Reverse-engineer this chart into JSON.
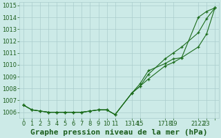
{
  "background_color": "#cceae7",
  "grid_color": "#aacccc",
  "line_color": "#1a6b1a",
  "marker_color": "#1a6b1a",
  "title": "Graphe pression niveau de la mer (hPa)",
  "ylim": [
    1005.5,
    1015.3
  ],
  "yticks": [
    1006,
    1007,
    1008,
    1009,
    1010,
    1011,
    1012,
    1013,
    1014,
    1015
  ],
  "xlim": [
    -0.5,
    23.5
  ],
  "x_positions": [
    0,
    1,
    2,
    3,
    4,
    5,
    6,
    7,
    8,
    9,
    10,
    11,
    12,
    13,
    14,
    15,
    16,
    17,
    18,
    19,
    20,
    21,
    22,
    23
  ],
  "xtick_positions": [
    0,
    1,
    2,
    3,
    4,
    5,
    6,
    7,
    8,
    9,
    10,
    11,
    13,
    14,
    15,
    17,
    18,
    19,
    21,
    22,
    23
  ],
  "xtick_labels": [
    "0",
    "1",
    "2",
    "3",
    "4",
    "5",
    "6",
    "7",
    "8",
    "9",
    "1011",
    "",
    "1314",
    "15",
    "",
    "1718",
    "19",
    "",
    "2122",
    "23",
    ""
  ],
  "series": [
    {
      "x": [
        0,
        1,
        2,
        3,
        4,
        5,
        6,
        7,
        8,
        9,
        10,
        11,
        13,
        14,
        15,
        17,
        18,
        19,
        21,
        22,
        23
      ],
      "y": [
        1006.6,
        1006.2,
        1006.1,
        1006.0,
        1006.0,
        1006.0,
        1006.0,
        1006.0,
        1006.1,
        1006.2,
        1006.2,
        1005.8,
        1007.6,
        1008.2,
        1008.8,
        1009.9,
        1010.2,
        1010.6,
        1014.0,
        1014.5,
        1014.8
      ]
    },
    {
      "x": [
        0,
        1,
        2,
        3,
        4,
        5,
        6,
        7,
        8,
        9,
        10,
        11,
        13,
        14,
        15,
        17,
        18,
        19,
        21,
        22,
        23
      ],
      "y": [
        1006.6,
        1006.2,
        1006.1,
        1006.0,
        1006.0,
        1006.0,
        1006.0,
        1006.0,
        1006.1,
        1006.2,
        1006.2,
        1005.8,
        1007.6,
        1008.2,
        1009.2,
        1010.5,
        1011.0,
        1011.5,
        1012.7,
        1013.9,
        1014.8
      ]
    },
    {
      "x": [
        0,
        1,
        2,
        3,
        4,
        5,
        6,
        7,
        8,
        9,
        10,
        11,
        13,
        14,
        15,
        17,
        18,
        19,
        21,
        22,
        23
      ],
      "y": [
        1006.6,
        1006.2,
        1006.1,
        1006.0,
        1006.0,
        1006.0,
        1006.0,
        1006.0,
        1006.1,
        1006.2,
        1006.2,
        1005.8,
        1007.6,
        1008.4,
        1009.5,
        1010.1,
        1010.5,
        1010.6,
        1011.5,
        1012.6,
        1014.8
      ]
    }
  ],
  "title_fontsize": 8,
  "tick_fontsize": 6,
  "title_color": "#1a5c1a",
  "tick_color": "#1a5c1a"
}
